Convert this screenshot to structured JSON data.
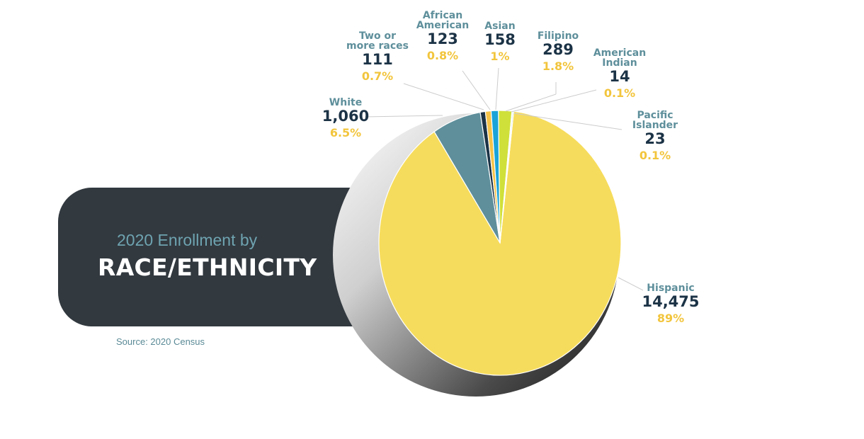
{
  "title": {
    "subtitle": "2020 Enrollment by",
    "main": "RACE/ETHNICITY"
  },
  "source": "Source: 2020 Census",
  "chart_data": {
    "type": "pie",
    "slices": [
      {
        "name": "Hispanic",
        "count": "14,475",
        "percent_label": "89%",
        "value": 14475,
        "color": "#f6dc5c"
      },
      {
        "name": "White",
        "count": "1,060",
        "percent_label": "6.5%",
        "value": 1060,
        "color": "#5e8f9b"
      },
      {
        "name": "Two or more races",
        "count": "111",
        "percent_label": "0.7%",
        "value": 111,
        "color": "#1c3346"
      },
      {
        "name": "African American",
        "count": "123",
        "percent_label": "0.8%",
        "value": 123,
        "color": "#f6c34a"
      },
      {
        "name": "Asian",
        "count": "158",
        "percent_label": "1%",
        "value": 158,
        "color": "#1aa3d8"
      },
      {
        "name": "Filipino",
        "count": "289",
        "percent_label": "1.8%",
        "value": 289,
        "color": "#cfe03a"
      },
      {
        "name": "American Indian",
        "count": "14",
        "percent_label": "0.1%",
        "value": 14,
        "color": "#2e6b8c"
      },
      {
        "name": "Pacific Islander",
        "count": "23",
        "percent_label": "0.1%",
        "value": 23,
        "color": "#9fd0dd"
      }
    ]
  },
  "labels": {
    "hispanic": {
      "name": "Hispanic",
      "count": "14,475",
      "pct": "89%"
    },
    "white": {
      "name": "White",
      "count": "1,060",
      "pct": "6.5%"
    },
    "two_or_more_line1": "Two or",
    "two_or_more_line2": "more races",
    "two_or_more": {
      "count": "111",
      "pct": "0.7%"
    },
    "african_american_line1": "African",
    "african_american_line2": "American",
    "african_american": {
      "count": "123",
      "pct": "0.8%"
    },
    "asian": {
      "name": "Asian",
      "count": "158",
      "pct": "1%"
    },
    "filipino": {
      "name": "Filipino",
      "count": "289",
      "pct": "1.8%"
    },
    "american_indian_line1": "American",
    "american_indian_line2": "Indian",
    "american_indian": {
      "count": "14",
      "pct": "0.1%"
    },
    "pacific_islander_line1": "Pacific",
    "pacific_islander_line2": "Islander",
    "pacific_islander": {
      "count": "23",
      "pct": "0.1%"
    }
  }
}
